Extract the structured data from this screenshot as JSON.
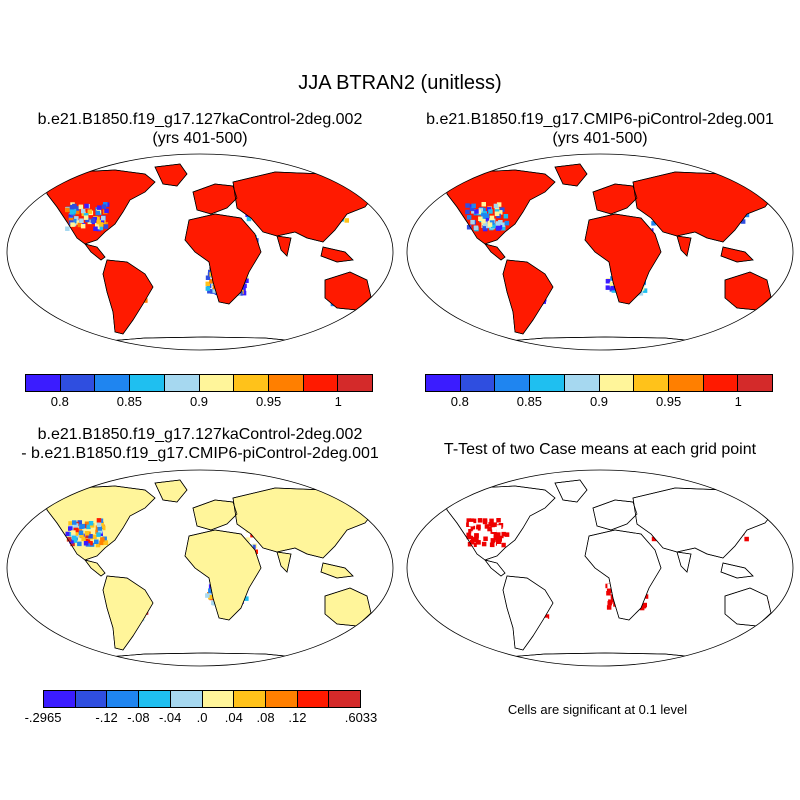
{
  "figure": {
    "title": "JJA BTRAN2 (unitless)"
  },
  "panels": [
    {
      "id": "case1",
      "title_line1": "b.e21.B1850.f19_g17.127kaControl-2deg.002",
      "title_line2": "(yrs 401-500)"
    },
    {
      "id": "case2",
      "title_line1": "b.e21.B1850.f19_g17.CMIP6-piControl-2deg.001",
      "title_line2": "(yrs 401-500)"
    },
    {
      "id": "diff",
      "title_line1": "b.e21.B1850.f19_g17.127kaControl-2deg.002",
      "title_line2": "- b.e21.B1850.f19_g17.CMIP6-piControl-2deg.001"
    },
    {
      "id": "ttest",
      "title_line1": "T-Test of two Case means at each grid point",
      "note": "Cells are significant at 0.1 level"
    }
  ],
  "colorbars": {
    "absolute": {
      "colors": [
        "#3b1cff",
        "#2f4ee0",
        "#1f85f0",
        "#1fbff0",
        "#a6d8f0",
        "#fff59a",
        "#ffc21a",
        "#ff7f00",
        "#ff1a00",
        "#d42a2a"
      ],
      "labels": [
        "0.8",
        "0.85",
        "0.9",
        "0.95",
        "1"
      ]
    },
    "difference": {
      "colors": [
        "#3b1cff",
        "#2f4ee0",
        "#1f85f0",
        "#1fbff0",
        "#a6d8f0",
        "#fff59a",
        "#ffc21a",
        "#ff7f00",
        "#ff1a00",
        "#d42a2a"
      ],
      "labels": [
        "-.2965",
        "-.12",
        "-.08",
        "-.04",
        ".0",
        ".04",
        ".08",
        ".12",
        ".6033"
      ]
    }
  },
  "significance_color": "#ee0000",
  "land_color_case1": "#ff1a00",
  "land_color_case2": "#ff1a00",
  "land_color_diff": "#fff59a"
}
